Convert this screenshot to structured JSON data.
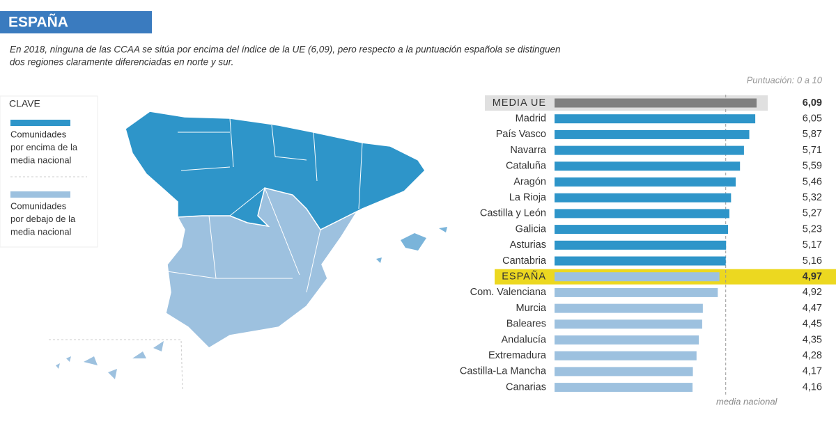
{
  "header": {
    "title": "ESPAÑA",
    "subtitle_lines": [
      "En 2018, ninguna de las CCAA se sitúa por encima del índice de la UE (6,09), pero respecto a la puntuación española se distinguen",
      "dos regiones claramente diferenciadas en norte y sur."
    ]
  },
  "legend": {
    "title": "CLAVE",
    "items": [
      {
        "color": "#2e95c9",
        "lines": [
          "Comunidades",
          "por encima de la",
          "media nacional"
        ]
      },
      {
        "color": "#9dc1df",
        "lines": [
          "Comunidades",
          "por debajo de la",
          "media nacional"
        ]
      }
    ]
  },
  "chart_data": {
    "type": "hbar",
    "scale_note": "Puntuación: 0 a 10",
    "reference_label": "media nacional",
    "reference_index": 10,
    "categories": [
      "MEDIA UE",
      "Madrid",
      "País Vasco",
      "Navarra",
      "Cataluña",
      "Aragón",
      "La Rioja",
      "Castilla y León",
      "Galicia",
      "Asturias",
      "Cantabria",
      "ESPAÑA",
      "Com. Valenciana",
      "Murcia",
      "Baleares",
      "Andalucía",
      "Extremadura",
      "Castilla-La Mancha",
      "Canarias"
    ],
    "values": [
      6.09,
      6.05,
      5.87,
      5.71,
      5.59,
      5.46,
      5.32,
      5.27,
      5.23,
      5.17,
      5.16,
      4.97,
      4.92,
      4.47,
      4.45,
      4.35,
      4.28,
      4.17,
      4.16
    ],
    "value_labels": [
      "6,09",
      "6,05",
      "5,87",
      "5,71",
      "5,59",
      "5,46",
      "5,32",
      "5,27",
      "5,23",
      "5,17",
      "5,16",
      "4,97",
      "4,92",
      "4,47",
      "4,45",
      "4,35",
      "4,28",
      "4,17",
      "4,16"
    ],
    "colors": [
      "#808080",
      "#2e95c9",
      "#2e95c9",
      "#2e95c9",
      "#2e95c9",
      "#2e95c9",
      "#2e95c9",
      "#2e95c9",
      "#2e95c9",
      "#2e95c9",
      "#2e95c9",
      "#9dc1df",
      "#9dc1df",
      "#9dc1df",
      "#9dc1df",
      "#9dc1df",
      "#9dc1df",
      "#9dc1df",
      "#9dc1df"
    ],
    "highlights": [
      {
        "index": 0,
        "color": "#e0e0e0",
        "bold": true
      },
      {
        "index": 11,
        "color": "#ecd820",
        "bold": true
      }
    ],
    "xlim": [
      0,
      10
    ]
  }
}
